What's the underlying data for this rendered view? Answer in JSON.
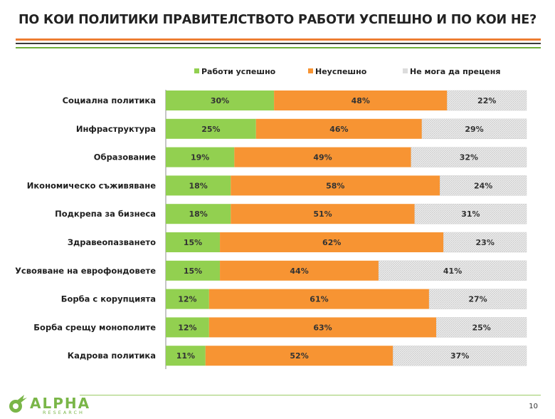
{
  "slide": {
    "title": "ПО КОИ ПОЛИТИКИ ПРАВИТЕЛСТВОТО РАБОТИ УСПЕШНО И ПО КОИ НЕ?",
    "page_number": "10",
    "logo": {
      "name": "ALPHA",
      "sub": "RESEARCH"
    }
  },
  "colors": {
    "success": "#92d050",
    "fail": "#f79433",
    "unsure": "#dcdcdc",
    "accent_orange": "#ed7d31",
    "accent_green": "#6fae3b"
  },
  "chart_data": {
    "type": "bar",
    "orientation": "horizontal",
    "stacked": true,
    "percent": true,
    "legend_position": "top",
    "categories": [
      "Социална политика",
      "Инфраструктура",
      "Образование",
      "Икономическо съживяване",
      "Подкрепа за бизнеса",
      "Здравеопазването",
      "Усвояване на еврофондовете",
      "Борба с корупцията",
      "Борба срещу монополите",
      "Кадрова политика"
    ],
    "series": [
      {
        "name": "Работи успешно",
        "values": [
          30,
          25,
          19,
          18,
          18,
          15,
          15,
          12,
          12,
          11
        ]
      },
      {
        "name": "Неуспешно",
        "values": [
          48,
          46,
          49,
          58,
          51,
          62,
          44,
          61,
          63,
          52
        ]
      },
      {
        "name": "Не мога да преценя",
        "values": [
          22,
          29,
          32,
          24,
          31,
          23,
          41,
          27,
          25,
          37
        ]
      }
    ],
    "xlim": [
      0,
      100
    ]
  }
}
